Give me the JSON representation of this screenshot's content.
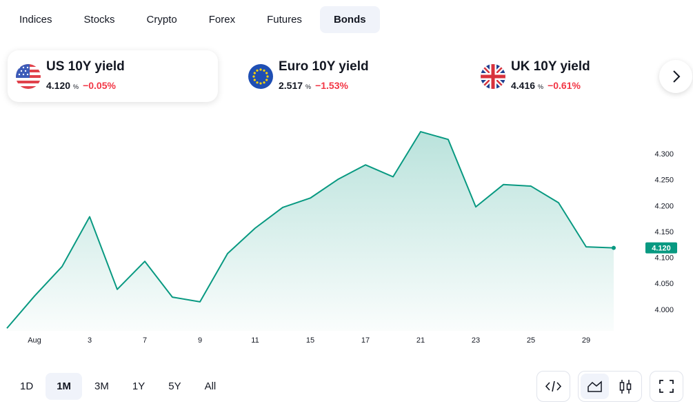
{
  "tabs": [
    "Indices",
    "Stocks",
    "Crypto",
    "Forex",
    "Futures",
    "Bonds"
  ],
  "active_tab": 5,
  "cards": [
    {
      "name": "US 10Y yield",
      "value": "4.120",
      "unit": "%",
      "change": "−0.05%"
    },
    {
      "name": "Euro 10Y yield",
      "value": "2.517",
      "unit": "%",
      "change": "−1.53%"
    },
    {
      "name": "UK 10Y yield",
      "value": "4.416",
      "unit": "%",
      "change": "−0.61%"
    }
  ],
  "active_card": 0,
  "change_color": "#f23645",
  "ranges": [
    "1D",
    "1M",
    "3M",
    "1Y",
    "5Y",
    "All"
  ],
  "active_range": 1,
  "chart_data": {
    "type": "area",
    "categories": [
      null,
      "Aug",
      null,
      "3",
      null,
      "7",
      null,
      "9",
      null,
      "11",
      null,
      "15",
      null,
      "17",
      null,
      "21",
      null,
      "23",
      null,
      "25",
      null,
      "29",
      null
    ],
    "values": [
      3.965,
      4.027,
      4.084,
      4.18,
      4.04,
      4.094,
      4.025,
      4.016,
      4.109,
      4.158,
      4.198,
      4.216,
      4.252,
      4.28,
      4.257,
      4.344,
      4.329,
      4.199,
      4.242,
      4.239,
      4.207,
      4.122,
      4.12
    ],
    "value_labels": [
      null,
      null,
      null,
      null,
      null,
      null,
      null,
      null,
      null,
      null,
      null,
      null,
      null,
      null,
      null,
      null,
      null,
      null,
      null,
      null,
      null,
      null,
      "4.120"
    ],
    "color": "#089981",
    "ylim": [
      3.96,
      4.36
    ],
    "yticks": [
      {
        "value": 4.0,
        "label": "4.000"
      },
      {
        "value": 4.05,
        "label": "4.050"
      },
      {
        "value": 4.1,
        "label": "4.100"
      },
      {
        "value": 4.15,
        "label": "4.150"
      },
      {
        "value": 4.2,
        "label": "4.200"
      },
      {
        "value": 4.25,
        "label": "4.250"
      },
      {
        "value": 4.3,
        "label": "4.300"
      }
    ],
    "grid": false
  }
}
